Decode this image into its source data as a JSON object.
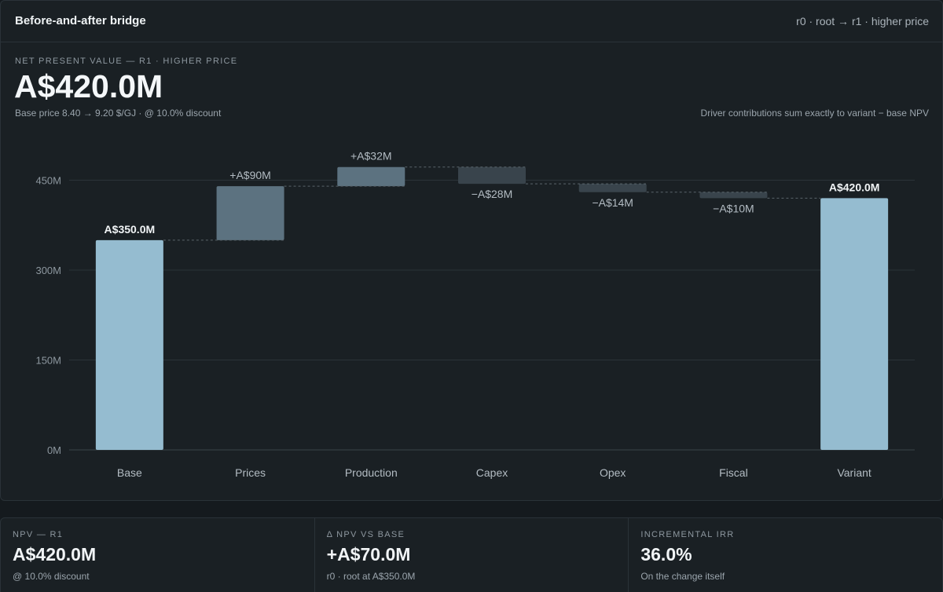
{
  "panel": {
    "title": "Before-and-after bridge",
    "breadcrumb": "r0 · root → r1 · higher price",
    "kicker": "NET PRESENT VALUE — R1 · HIGHER PRICE",
    "value": "A$420.0M",
    "subline": "Base price 8.40 → 9.20 $/GJ · @ 10.0% discount",
    "note": "Driver contributions sum exactly to variant − base NPV"
  },
  "colors": {
    "total_bar": "#95bcd0",
    "positive_bar": "#5c7280",
    "negative_bar": "#39444c",
    "grid": "#2b3338",
    "axis_text": "#8d979f",
    "connector": "#5a646b"
  },
  "chart_data": {
    "type": "waterfall",
    "title": "",
    "xlabel": "",
    "ylabel": "",
    "ylim": [
      0,
      520
    ],
    "yticks": [
      0,
      150,
      300,
      450
    ],
    "ytick_labels": [
      "0M",
      "150M",
      "300M",
      "450M"
    ],
    "grid": true,
    "categories": [
      "Base",
      "Prices",
      "Production",
      "Capex",
      "Opex",
      "Fiscal",
      "Variant"
    ],
    "steps": [
      {
        "category": "Base",
        "kind": "total",
        "value": 350,
        "label": "A$350.0M"
      },
      {
        "category": "Prices",
        "kind": "delta",
        "value": 90,
        "label": "+A$90M"
      },
      {
        "category": "Production",
        "kind": "delta",
        "value": 32,
        "label": "+A$32M"
      },
      {
        "category": "Capex",
        "kind": "delta",
        "value": -28,
        "label": "−A$28M"
      },
      {
        "category": "Opex",
        "kind": "delta",
        "value": -14,
        "label": "−A$14M"
      },
      {
        "category": "Fiscal",
        "kind": "delta",
        "value": -10,
        "label": "−A$10M"
      },
      {
        "category": "Variant",
        "kind": "total",
        "value": 420,
        "label": "A$420.0M"
      }
    ]
  },
  "kpis": [
    {
      "label": "NPV — R1",
      "value": "A$420.0M",
      "sub": "@ 10.0% discount"
    },
    {
      "label": "Δ NPV VS BASE",
      "value": "+A$70.0M",
      "sub": "r0 · root at A$350.0M"
    },
    {
      "label": "INCREMENTAL IRR",
      "value": "36.0%",
      "sub": "On the change itself"
    }
  ]
}
